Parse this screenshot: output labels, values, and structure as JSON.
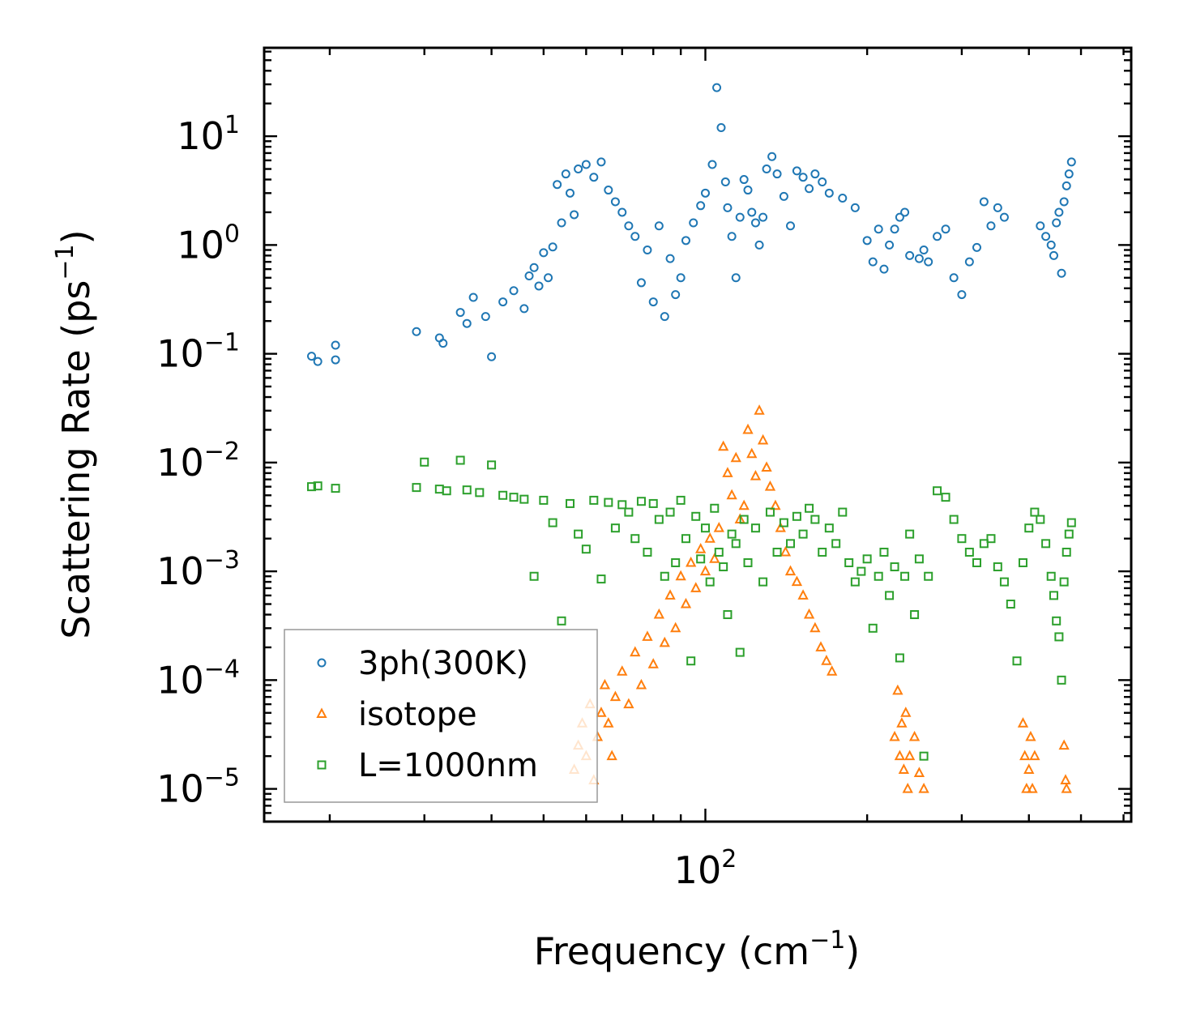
{
  "chart_data": {
    "type": "scatter",
    "title": "",
    "xlabel": "Frequency (cm",
    "xlabel_sup": "−1",
    "xlabel_end": ")",
    "ylabel": "Scattering Rate (ps",
    "ylabel_sup": "−1",
    "ylabel_end": ")",
    "xscale": "log",
    "yscale": "log",
    "xlim": [
      15.1,
      620
    ],
    "ylim": [
      5e-06,
      65
    ],
    "x_tick_labels": [
      {
        "base": "10",
        "exp": "2",
        "value": 100
      }
    ],
    "y_tick_labels": [
      {
        "base": "10",
        "exp": "1",
        "value": 10
      },
      {
        "base": "10",
        "exp": "0",
        "value": 1
      },
      {
        "base": "10",
        "exp": "−1",
        "value": 0.1
      },
      {
        "base": "10",
        "exp": "−2",
        "value": 0.01
      },
      {
        "base": "10",
        "exp": "−3",
        "value": 0.001
      },
      {
        "base": "10",
        "exp": "−4",
        "value": 0.0001
      },
      {
        "base": "10",
        "exp": "−5",
        "value": 1e-05
      }
    ],
    "legend_position": "lower-left",
    "series": [
      {
        "name": "3ph(300K)",
        "marker": "circle",
        "color": "#1f77b4",
        "x": [
          18.5,
          19,
          20.5,
          20.5,
          29,
          32,
          32.5,
          35,
          36,
          37,
          39,
          40,
          42,
          44,
          46,
          47,
          48,
          49,
          50,
          51,
          52,
          53,
          54,
          55,
          56,
          57,
          58,
          60,
          62,
          64,
          66,
          68,
          70,
          72,
          74,
          76,
          78,
          80,
          82,
          84,
          86,
          88,
          90,
          92,
          95,
          98,
          100,
          103,
          105,
          107,
          109,
          110,
          112,
          114,
          116,
          118,
          120,
          122,
          124,
          126,
          128,
          130,
          133,
          136,
          140,
          144,
          148,
          152,
          156,
          160,
          165,
          170,
          180,
          190,
          200,
          205,
          210,
          215,
          220,
          225,
          230,
          235,
          240,
          250,
          255,
          260,
          270,
          280,
          290,
          300,
          310,
          320,
          330,
          340,
          350,
          360,
          420,
          430,
          440,
          445,
          450,
          455,
          460,
          465,
          470,
          475,
          480
        ],
        "y": [
          0.095,
          0.085,
          0.12,
          0.088,
          0.16,
          0.14,
          0.125,
          0.24,
          0.19,
          0.33,
          0.22,
          0.094,
          0.3,
          0.38,
          0.26,
          0.52,
          0.62,
          0.42,
          0.85,
          0.5,
          0.96,
          3.6,
          1.6,
          4.5,
          3.0,
          1.9,
          5.0,
          5.5,
          4.2,
          5.8,
          3.2,
          2.5,
          2.0,
          1.5,
          1.2,
          0.45,
          0.9,
          0.3,
          1.5,
          0.22,
          0.75,
          0.35,
          0.5,
          1.1,
          1.6,
          2.3,
          3.0,
          5.5,
          28,
          12,
          3.8,
          2.2,
          1.2,
          0.5,
          1.8,
          4.0,
          3.2,
          2.0,
          1.6,
          1.0,
          1.8,
          5.0,
          6.5,
          4.5,
          2.8,
          1.5,
          4.8,
          4.2,
          3.3,
          4.5,
          3.8,
          3.0,
          2.7,
          2.2,
          1.1,
          0.7,
          1.4,
          0.6,
          1.0,
          1.4,
          1.8,
          2.0,
          0.8,
          0.75,
          0.9,
          0.7,
          1.2,
          1.4,
          0.5,
          0.35,
          0.7,
          0.95,
          2.5,
          1.5,
          2.2,
          1.8,
          1.5,
          1.2,
          1.0,
          0.8,
          1.6,
          2.0,
          0.55,
          2.5,
          3.5,
          4.5,
          5.8
        ]
      },
      {
        "name": "isotope",
        "marker": "triangle",
        "color": "#ff7f0e",
        "x": [
          57,
          58,
          59,
          60,
          61,
          62,
          63,
          64,
          65,
          66,
          67,
          68,
          70,
          72,
          74,
          76,
          78,
          80,
          82,
          84,
          86,
          88,
          90,
          92,
          94,
          96,
          98,
          100,
          102,
          104,
          106,
          108,
          110,
          112,
          114,
          116,
          118,
          120,
          122,
          124,
          126,
          128,
          130,
          132,
          135,
          138,
          141,
          144,
          148,
          152,
          156,
          160,
          164,
          168,
          172,
          225,
          228,
          230,
          232,
          234,
          236,
          238,
          240,
          245,
          250,
          255,
          390,
          393,
          396,
          400,
          403,
          406,
          410,
          465,
          468,
          470
        ],
        "y": [
          1.5e-05,
          2.5e-05,
          4e-05,
          2e-05,
          6e-05,
          1.2e-05,
          3e-05,
          5e-05,
          9e-05,
          4e-05,
          2e-05,
          7e-05,
          0.00012,
          6e-05,
          0.00018,
          9e-05,
          0.00025,
          0.00014,
          0.0004,
          0.00022,
          0.0006,
          0.0003,
          0.0009,
          0.0005,
          0.0012,
          0.0007,
          0.0016,
          0.001,
          0.002,
          0.0013,
          0.0025,
          0.014,
          0.008,
          0.005,
          0.011,
          0.003,
          0.004,
          0.02,
          0.012,
          0.0075,
          0.03,
          0.016,
          0.009,
          0.006,
          0.004,
          0.0025,
          0.0015,
          0.001,
          0.0008,
          0.0006,
          0.0004,
          0.0003,
          0.0002,
          0.00015,
          0.00012,
          3e-05,
          8e-05,
          2e-05,
          4e-05,
          1.5e-05,
          5e-05,
          1e-05,
          2e-05,
          3e-05,
          1.4e-05,
          1e-05,
          4e-05,
          2e-05,
          1e-05,
          1.5e-05,
          3e-05,
          1e-05,
          2e-05,
          2.5e-05,
          1.2e-05,
          1e-05
        ]
      },
      {
        "name": "L=1000nm",
        "marker": "square",
        "color": "#2ca02c",
        "x": [
          18.5,
          19,
          20.5,
          29,
          30,
          32,
          33,
          35,
          36,
          38,
          40,
          42,
          44,
          46,
          48,
          50,
          52,
          54,
          56,
          58,
          60,
          62,
          64,
          66,
          68,
          70,
          72,
          74,
          76,
          78,
          80,
          82,
          84,
          86,
          88,
          90,
          92,
          94,
          96,
          98,
          100,
          102,
          104,
          106,
          108,
          110,
          112,
          114,
          116,
          118,
          120,
          124,
          128,
          132,
          136,
          140,
          144,
          148,
          152,
          156,
          160,
          165,
          170,
          175,
          180,
          185,
          190,
          195,
          200,
          205,
          210,
          215,
          220,
          225,
          230,
          235,
          240,
          245,
          250,
          255,
          260,
          270,
          280,
          290,
          300,
          310,
          320,
          330,
          340,
          350,
          360,
          370,
          380,
          390,
          400,
          410,
          420,
          430,
          440,
          445,
          450,
          455,
          460,
          465,
          470,
          475,
          480
        ],
        "y": [
          0.006,
          0.0061,
          0.0058,
          0.0059,
          0.0101,
          0.0057,
          0.0055,
          0.0105,
          0.0056,
          0.0053,
          0.0095,
          0.005,
          0.0048,
          0.0046,
          0.0009,
          0.0045,
          0.0028,
          0.00035,
          0.0042,
          0.0022,
          0.0016,
          0.0045,
          0.00085,
          0.0043,
          0.0025,
          0.0041,
          0.0035,
          0.002,
          0.0044,
          0.0015,
          0.0042,
          0.003,
          0.0009,
          0.0035,
          0.0012,
          0.0045,
          0.002,
          0.00015,
          0.0032,
          0.0013,
          0.0025,
          0.0008,
          0.0038,
          0.0015,
          0.0011,
          0.0004,
          0.0022,
          0.0018,
          0.00018,
          0.003,
          0.0012,
          0.0025,
          0.0008,
          0.0035,
          0.0015,
          0.0028,
          0.0018,
          0.0032,
          0.0022,
          0.0038,
          0.003,
          0.0015,
          0.0025,
          0.0018,
          0.0035,
          0.0012,
          0.0008,
          0.001,
          0.0013,
          0.0003,
          0.0009,
          0.0015,
          0.0006,
          0.0011,
          0.00016,
          0.0009,
          0.0022,
          0.0004,
          0.0013,
          2e-05,
          0.0009,
          0.0055,
          0.0048,
          0.003,
          0.002,
          0.0015,
          0.0012,
          0.0018,
          0.002,
          0.0011,
          0.0008,
          0.0005,
          0.00015,
          0.0012,
          0.0025,
          0.0035,
          0.003,
          0.0018,
          0.0009,
          0.0006,
          0.00035,
          0.00025,
          0.0001,
          0.0008,
          0.0015,
          0.0022,
          0.0028
        ]
      }
    ]
  }
}
